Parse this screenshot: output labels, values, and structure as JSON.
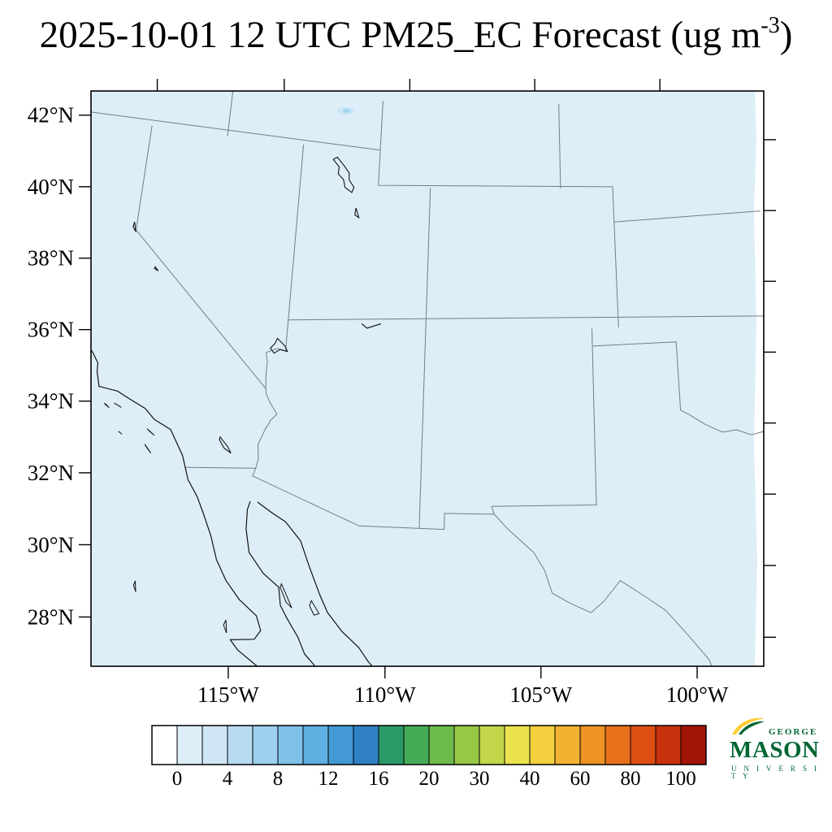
{
  "title": {
    "text": "2025-10-01 12 UTC PM25_EC Forecast (ug m",
    "superscript": "-3",
    "suffix": ")"
  },
  "map": {
    "background_color": "#ddeef8",
    "right_edge_value_color": "#ffffff",
    "state_line_color": "#6f7f89",
    "coast_line_color": "#111111",
    "lat_ticks": [
      {
        "value": 42,
        "label": "42°N"
      },
      {
        "value": 40,
        "label": "40°N"
      },
      {
        "value": 38,
        "label": "38°N"
      },
      {
        "value": 36,
        "label": "36°N"
      },
      {
        "value": 34,
        "label": "34°N"
      },
      {
        "value": 32,
        "label": "32°N"
      },
      {
        "value": 30,
        "label": "30°N"
      },
      {
        "value": 28,
        "label": "28°N"
      }
    ],
    "lon_ticks": [
      {
        "value": -115,
        "label": "115°W"
      },
      {
        "value": -110,
        "label": "110°W"
      },
      {
        "value": -105,
        "label": "105°W"
      },
      {
        "value": -100,
        "label": "100°W"
      }
    ],
    "top_tick_lons": [
      -120,
      -115,
      -110,
      -105,
      -100
    ],
    "plume": {
      "lat": 43.05,
      "lon": -112.5,
      "color": "#9fd4f0",
      "halo": "#c9e6f7"
    },
    "right_strip": [
      [
        940,
        112
      ],
      [
        940,
        820
      ],
      [
        929,
        820
      ],
      [
        932,
        690
      ],
      [
        928,
        545
      ],
      [
        931,
        400
      ],
      [
        928,
        260
      ],
      [
        931,
        170
      ],
      [
        929,
        112
      ]
    ]
  },
  "geo": {
    "state_lines": [
      [
        [
          42,
          -124.3
        ],
        [
          42,
          -111.05
        ]
      ],
      [
        [
          42,
          -120
        ],
        [
          39,
          -120
        ],
        [
          35.0,
          -114.63
        ]
      ],
      [
        [
          35.0,
          -114.63
        ],
        [
          34.85,
          -114.6
        ],
        [
          34.6,
          -114.42
        ],
        [
          34.3,
          -114.16
        ],
        [
          34.13,
          -114.35
        ],
        [
          33.85,
          -114.52
        ],
        [
          33.4,
          -114.72
        ],
        [
          33.0,
          -114.66
        ],
        [
          32.73,
          -114.72
        ],
        [
          32.53,
          -117.13
        ]
      ],
      [
        [
          32.73,
          -114.72
        ],
        [
          32.5,
          -114.8
        ],
        [
          31.33,
          -111.07
        ],
        [
          31.33,
          -108.21
        ],
        [
          31.78,
          -108.21
        ],
        [
          31.78,
          -106.53
        ]
      ],
      [
        [
          31.78,
          -106.53
        ],
        [
          31.35,
          -106.05
        ],
        [
          30.7,
          -105.2
        ],
        [
          30.2,
          -104.85
        ],
        [
          29.55,
          -104.6
        ],
        [
          29.25,
          -104.0
        ],
        [
          28.98,
          -103.35
        ],
        [
          29.3,
          -102.9
        ],
        [
          29.85,
          -102.35
        ],
        [
          29.4,
          -101.6
        ],
        [
          28.95,
          -100.9
        ],
        [
          28.25,
          -100.25
        ],
        [
          27.5,
          -99.6
        ],
        [
          26.9,
          -99.4
        ],
        [
          26.3,
          -99.0
        ]
      ],
      [
        [
          42,
          -114.05
        ],
        [
          36.12,
          -114.05
        ]
      ],
      [
        [
          36.12,
          -114.05
        ],
        [
          36.16,
          -114.35
        ],
        [
          36.02,
          -114.74
        ],
        [
          35.75,
          -114.66
        ],
        [
          35.4,
          -114.67
        ],
        [
          35.0,
          -114.63
        ]
      ],
      [
        [
          37,
          -114.05
        ],
        [
          37,
          -96.5
        ]
      ],
      [
        [
          41,
          -109.05
        ],
        [
          31.33,
          -109.05
        ]
      ],
      [
        [
          43.4,
          -111.05
        ],
        [
          41,
          -111.05
        ],
        [
          41,
          -102.05
        ],
        [
          40,
          -102.05
        ],
        [
          40,
          -96.5
        ]
      ],
      [
        [
          41,
          -104.05
        ],
        [
          43.4,
          -104.05
        ]
      ],
      [
        [
          40,
          -102.05
        ],
        [
          37,
          -102.05
        ]
      ],
      [
        [
          37,
          -103.02
        ],
        [
          32.0,
          -103.06
        ],
        [
          32.0,
          -106.62
        ],
        [
          31.78,
          -106.53
        ]
      ],
      [
        [
          36.5,
          -103.0
        ],
        [
          36.5,
          -100.0
        ],
        [
          34.56,
          -100.0
        ],
        [
          34.4,
          -99.68
        ],
        [
          34.12,
          -99.2
        ],
        [
          33.85,
          -98.6
        ],
        [
          33.88,
          -98.1
        ],
        [
          33.7,
          -97.6
        ],
        [
          33.8,
          -96.9
        ]
      ],
      [
        [
          42,
          -117.03
        ],
        [
          43.4,
          -117.03
        ]
      ]
    ],
    "coast_lines": [
      [
        [
          40.4,
          -124.4
        ],
        [
          39.7,
          -123.83
        ],
        [
          39.3,
          -123.8
        ],
        [
          38.9,
          -123.7
        ],
        [
          38.5,
          -123.2
        ],
        [
          38.3,
          -123.06
        ],
        [
          38.0,
          -122.97
        ],
        [
          37.8,
          -122.5
        ],
        [
          37.4,
          -122.4
        ],
        [
          37.1,
          -122.28
        ],
        [
          36.95,
          -122.0
        ],
        [
          36.6,
          -121.9
        ],
        [
          36.3,
          -121.89
        ],
        [
          35.85,
          -121.4
        ],
        [
          35.35,
          -120.85
        ],
        [
          35.1,
          -120.63
        ],
        [
          34.86,
          -120.61
        ],
        [
          34.45,
          -120.46
        ],
        [
          34.4,
          -119.8
        ],
        [
          34.22,
          -119.3
        ],
        [
          34.03,
          -118.75
        ],
        [
          33.76,
          -118.39
        ],
        [
          33.54,
          -117.78
        ],
        [
          32.85,
          -117.26
        ],
        [
          32.53,
          -117.12
        ],
        [
          32.2,
          -116.98
        ],
        [
          31.75,
          -116.6
        ],
        [
          31.3,
          -116.33
        ],
        [
          30.7,
          -116.0
        ],
        [
          30.05,
          -115.73
        ],
        [
          29.5,
          -115.35
        ],
        [
          29.0,
          -114.85
        ],
        [
          28.6,
          -114.25
        ],
        [
          28.2,
          -114.07
        ],
        [
          27.94,
          -114.25
        ],
        [
          27.86,
          -115.02
        ],
        [
          27.6,
          -114.75
        ],
        [
          27.15,
          -114.0
        ],
        [
          26.8,
          -113.3
        ],
        [
          26.4,
          -112.75
        ]
      ],
      [
        [
          26.5,
          -111.4
        ],
        [
          26.9,
          -111.8
        ],
        [
          27.3,
          -112.2
        ],
        [
          27.65,
          -112.6
        ],
        [
          28.1,
          -112.85
        ],
        [
          28.6,
          -113.25
        ],
        [
          28.95,
          -113.5
        ],
        [
          29.45,
          -113.6
        ],
        [
          29.8,
          -114.15
        ],
        [
          30.35,
          -114.68
        ],
        [
          31.0,
          -114.85
        ],
        [
          31.55,
          -114.87
        ],
        [
          31.78,
          -114.8
        ]
      ],
      [
        [
          31.78,
          -114.55
        ],
        [
          31.5,
          -114.0
        ],
        [
          31.3,
          -113.55
        ],
        [
          30.8,
          -113.0
        ],
        [
          30.1,
          -112.65
        ],
        [
          29.35,
          -112.25
        ],
        [
          28.85,
          -111.95
        ],
        [
          28.35,
          -111.45
        ],
        [
          27.92,
          -110.87
        ],
        [
          27.55,
          -110.55
        ],
        [
          27.0,
          -109.95
        ],
        [
          26.4,
          -109.5
        ]
      ],
      [
        [
          37.08,
          -110.68
        ],
        [
          36.93,
          -111.18
        ],
        [
          37.05,
          -111.38
        ]
      ]
    ],
    "islands": [
      [
        [
          29.55,
          -113.52
        ],
        [
          29.2,
          -113.3
        ],
        [
          28.9,
          -113.12
        ],
        [
          29.05,
          -113.32
        ],
        [
          29.45,
          -113.55
        ]
      ],
      [
        [
          29.15,
          -112.5
        ],
        [
          28.8,
          -112.22
        ],
        [
          28.75,
          -112.38
        ],
        [
          29.0,
          -112.55
        ]
      ],
      [
        [
          34.0,
          -120.2
        ],
        [
          33.9,
          -120.0
        ],
        [
          33.98,
          -120.12
        ]
      ],
      [
        [
          34.05,
          -119.85
        ],
        [
          33.96,
          -119.58
        ],
        [
          34.02,
          -119.75
        ]
      ],
      [
        [
          33.47,
          -118.59
        ],
        [
          33.31,
          -118.31
        ],
        [
          33.41,
          -118.5
        ]
      ],
      [
        [
          33.03,
          -118.6
        ],
        [
          32.8,
          -118.35
        ],
        [
          32.95,
          -118.53
        ]
      ],
      [
        [
          33.28,
          -119.56
        ],
        [
          33.21,
          -119.42
        ],
        [
          33.26,
          -119.52
        ]
      ],
      [
        [
          29.18,
          -118.3
        ],
        [
          28.88,
          -118.24
        ],
        [
          29.05,
          -118.34
        ]
      ],
      [
        [
          28.4,
          -115.22
        ],
        [
          28.04,
          -115.16
        ],
        [
          28.25,
          -115.28
        ]
      ]
    ],
    "lakes": [
      [
        [
          41.65,
          -112.85
        ],
        [
          41.45,
          -112.6
        ],
        [
          41.25,
          -112.62
        ],
        [
          41.1,
          -112.4
        ],
        [
          40.88,
          -112.32
        ],
        [
          40.75,
          -112.05
        ],
        [
          40.9,
          -111.98
        ],
        [
          41.1,
          -112.18
        ],
        [
          41.3,
          -112.2
        ],
        [
          41.5,
          -112.42
        ],
        [
          41.72,
          -112.7
        ]
      ],
      [
        [
          40.32,
          -111.85
        ],
        [
          40.05,
          -111.72
        ],
        [
          40.12,
          -111.88
        ]
      ],
      [
        [
          39.22,
          -120.1
        ],
        [
          38.95,
          -120.0
        ],
        [
          39.08,
          -120.13
        ]
      ],
      [
        [
          38.05,
          -119.1
        ],
        [
          37.95,
          -118.97
        ],
        [
          38.0,
          -119.12
        ]
      ],
      [
        [
          33.5,
          -116.05
        ],
        [
          33.25,
          -115.75
        ],
        [
          33.08,
          -115.62
        ],
        [
          33.2,
          -115.87
        ],
        [
          33.42,
          -116.06
        ]
      ],
      [
        [
          36.45,
          -114.38
        ],
        [
          36.25,
          -114.08
        ],
        [
          36.1,
          -113.98
        ],
        [
          36.14,
          -114.25
        ],
        [
          36.02,
          -114.45
        ],
        [
          36.15,
          -114.6
        ],
        [
          36.3,
          -114.45
        ]
      ]
    ]
  },
  "colorbar": {
    "colors": [
      "#ffffff",
      "#ddeef8",
      "#cfe6f6",
      "#b7dcf2",
      "#9cd0ee",
      "#7fc1e8",
      "#5fafe0",
      "#4399d3",
      "#2f81c3",
      "#2b9a68",
      "#46ab57",
      "#6cba4c",
      "#98c848",
      "#c3d64a",
      "#ebe34e",
      "#f4d03f",
      "#f2b232",
      "#ee9226",
      "#e8711c",
      "#de4f13",
      "#c9300d",
      "#a31408"
    ],
    "labels": [
      "0",
      "4",
      "8",
      "12",
      "16",
      "20",
      "30",
      "40",
      "60",
      "80",
      "100"
    ]
  },
  "logo": {
    "line1": "GEORGE",
    "line2": "MASON",
    "line3": "U N I V E R S I T Y",
    "green": "#006633",
    "gold": "#ffcc33"
  }
}
